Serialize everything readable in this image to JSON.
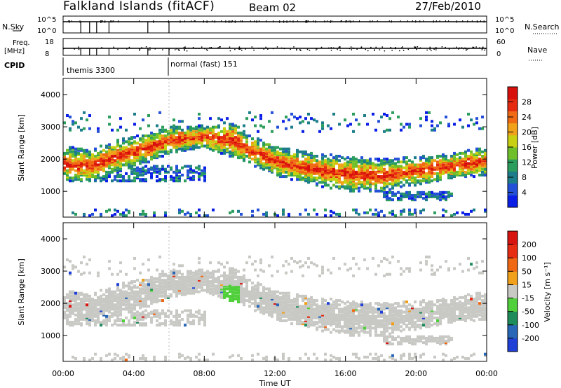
{
  "header": {
    "station": "Falkland Islands (fitACF)",
    "beam": "Beam 02",
    "date": "27/Feb/2010"
  },
  "top_panels": {
    "nsky_label": "N.Sky",
    "nsky_ticks": [
      "10^5",
      "10^0"
    ],
    "nsearch_label": "N.Search",
    "nsearch_ticks": [
      "10^5",
      "10^0"
    ],
    "freq_label": "Freq.",
    "freq_unit": "[MHz]",
    "freq_ticks": [
      "18",
      "8"
    ],
    "nave_label": "Nave",
    "nave_ticks": [
      "60",
      "0"
    ],
    "cpid_label": "CPID",
    "cpid_segments": [
      "themis 3300",
      "normal (fast) 151"
    ]
  },
  "chart_data": [
    {
      "type": "heatmap",
      "name": "power",
      "ylabel": "Slant Range [km]",
      "xlim": [
        0,
        24
      ],
      "ylim": [
        200,
        4500
      ],
      "yticks": [
        "1000",
        "2000",
        "3000",
        "4000"
      ],
      "colorbar": {
        "label": "Power [dB]",
        "ticks": [
          "4",
          "8",
          "12",
          "16",
          "20",
          "24",
          "28"
        ],
        "range": [
          0,
          32
        ],
        "colors": [
          "#0a1ee6",
          "#2450d8",
          "#1d7d8a",
          "#2b9d5c",
          "#6fbf2a",
          "#c8d012",
          "#f0a21a",
          "#f06a14",
          "#e62a10",
          "#d8100c"
        ]
      },
      "echo_bands": [
        {
          "x": [
            0.0,
            1.5,
            3.0,
            5.0,
            6.0,
            8.0,
            9.5,
            10.5,
            12.0,
            14.0,
            16.0,
            18.0,
            20.0,
            22.0,
            24.0
          ],
          "range_km": [
            1800,
            1750,
            2050,
            2350,
            2550,
            2650,
            2550,
            2250,
            1900,
            1650,
            1500,
            1450,
            1600,
            1750,
            1900
          ],
          "width_km": [
            550,
            500,
            500,
            450,
            400,
            350,
            550,
            450,
            450,
            500,
            550,
            500,
            450,
            400,
            450
          ],
          "power_db": 22
        }
      ]
    },
    {
      "type": "heatmap",
      "name": "velocity",
      "ylabel": "Slant Range [km]",
      "xlabel": "Time UT",
      "xticks": [
        "00:00",
        "04:00",
        "08:00",
        "12:00",
        "16:00",
        "20:00",
        "00:00"
      ],
      "xlim": [
        0,
        24
      ],
      "ylim": [
        200,
        4500
      ],
      "yticks": [
        "1000",
        "2000",
        "3000",
        "4000"
      ],
      "colorbar": {
        "label": "Velocity [m s⁻¹]",
        "ticks": [
          "200",
          "100",
          "50",
          "15",
          "-15",
          "-50",
          "-100",
          "-200"
        ],
        "colors": [
          "#1f3fd6",
          "#2866b8",
          "#1d8c5a",
          "#4fcf3a",
          "#c8c8c4",
          "#f0a01a",
          "#f06814",
          "#e62c12",
          "#d81410"
        ]
      }
    }
  ]
}
